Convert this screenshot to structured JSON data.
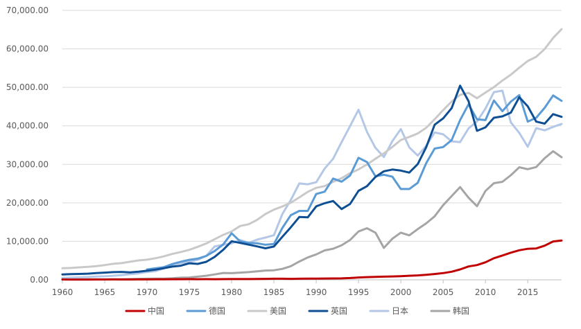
{
  "chart_data": {
    "type": "line",
    "title": "",
    "xlabel": "",
    "ylabel": "",
    "x": [
      1960,
      1961,
      1962,
      1963,
      1964,
      1965,
      1966,
      1967,
      1968,
      1969,
      1970,
      1971,
      1972,
      1973,
      1974,
      1975,
      1976,
      1977,
      1978,
      1979,
      1980,
      1981,
      1982,
      1983,
      1984,
      1985,
      1986,
      1987,
      1988,
      1989,
      1990,
      1991,
      1992,
      1993,
      1994,
      1995,
      1996,
      1997,
      1998,
      1999,
      2000,
      2001,
      2002,
      2003,
      2004,
      2005,
      2006,
      2007,
      2008,
      2009,
      2010,
      2011,
      2012,
      2013,
      2014,
      2015,
      2016,
      2017,
      2018,
      2019
    ],
    "xlim": [
      1960,
      2019
    ],
    "x_ticks": [
      "1960",
      "1965",
      "1970",
      "1975",
      "1980",
      "1985",
      "1990",
      "1995",
      "2000",
      "2005",
      "2010",
      "2015"
    ],
    "x_tick_values": [
      1960,
      1965,
      1970,
      1975,
      1980,
      1985,
      1990,
      1995,
      2000,
      2005,
      2010,
      2015
    ],
    "ylim": [
      0,
      70000
    ],
    "y_ticks": [
      "0.00",
      "10,000.00",
      "20,000.00",
      "30,000.00",
      "40,000.00",
      "50,000.00",
      "60,000.00",
      "70,000.00"
    ],
    "y_tick_values": [
      0,
      10000,
      20000,
      30000,
      40000,
      50000,
      60000,
      70000
    ],
    "grid": "horizontal",
    "legend_position": "bottom",
    "series": [
      {
        "name": "中国",
        "color": "#c00000",
        "values": [
          90,
          76,
          70,
          74,
          85,
          98,
          104,
          97,
          91,
          100,
          113,
          118,
          131,
          156,
          160,
          178,
          165,
          185,
          156,
          183,
          195,
          197,
          203,
          225,
          250,
          294,
          281,
          252,
          284,
          311,
          318,
          333,
          366,
          377,
          473,
          610,
          709,
          782,
          829,
          873,
          959,
          1053,
          1149,
          1289,
          1509,
          1753,
          2099,
          2694,
          3468,
          3832,
          4550,
          5618,
          6317,
          7051,
          7679,
          8066,
          8148,
          8879,
          9977,
          10217
        ]
      },
      {
        "name": "德国",
        "color": "#5b9bd5",
        "values": [
          null,
          null,
          null,
          null,
          null,
          null,
          null,
          null,
          null,
          null,
          2700,
          3000,
          3300,
          4100,
          4700,
          5200,
          5500,
          6200,
          7500,
          9200,
          12100,
          10000,
          9600,
          9500,
          9100,
          9300,
          13500,
          16800,
          17900,
          17900,
          22300,
          22900,
          26300,
          25500,
          27100,
          31700,
          30600,
          26900,
          27300,
          26800,
          23600,
          23600,
          25200,
          30300,
          34100,
          34500,
          36300,
          41500,
          45600,
          41700,
          41500,
          46600,
          43800,
          46300,
          48000,
          41100,
          42100,
          44700,
          47900,
          46500
        ]
      },
      {
        "name": "美国",
        "color": "#c9c9c9",
        "values": [
          3000,
          3070,
          3240,
          3370,
          3570,
          3830,
          4150,
          4330,
          4690,
          5030,
          5230,
          5610,
          6100,
          6730,
          7240,
          7800,
          8590,
          9450,
          10560,
          11670,
          12570,
          13990,
          14430,
          15560,
          17120,
          18230,
          19070,
          20040,
          21420,
          22860,
          23890,
          24340,
          25470,
          26390,
          27690,
          28690,
          29970,
          31460,
          32850,
          34510,
          36330,
          37130,
          38020,
          39490,
          41720,
          44110,
          46300,
          48050,
          48570,
          47190,
          48650,
          50070,
          51780,
          53290,
          55120,
          56850,
          57950,
          59960,
          62840,
          65120
        ]
      },
      {
        "name": "英国",
        "color": "#0e4f94",
        "values": [
          1400,
          1470,
          1530,
          1600,
          1750,
          1870,
          1990,
          2060,
          1950,
          2100,
          2350,
          2650,
          3030,
          3430,
          3670,
          4300,
          4140,
          4680,
          5980,
          7800,
          10030,
          9600,
          9150,
          8690,
          8180,
          8650,
          11200,
          13650,
          16330,
          16240,
          19100,
          19900,
          20470,
          18390,
          19710,
          23120,
          24330,
          26730,
          28200,
          28640,
          28370,
          27850,
          30070,
          34440,
          40290,
          41950,
          44600,
          50440,
          46430,
          38710,
          39600,
          42100,
          42460,
          43440,
          47440,
          45070,
          41100,
          40570,
          43050,
          42350
        ]
      },
      {
        "name": "日本",
        "color": "#b4c7e7",
        "values": [
          480,
          560,
          630,
          720,
          840,
          920,
          1060,
          1230,
          1450,
          1670,
          2040,
          2270,
          2950,
          3980,
          4350,
          4660,
          5200,
          6230,
          8670,
          9100,
          9460,
          10360,
          9580,
          10430,
          10980,
          11580,
          17110,
          20750,
          25050,
          24810,
          25360,
          28920,
          31460,
          35770,
          39930,
          44200,
          38440,
          34300,
          31900,
          36030,
          39170,
          34410,
          32290,
          34810,
          38300,
          37810,
          35990,
          35780,
          39340,
          41130,
          44510,
          48760,
          49140,
          40900,
          38160,
          34570,
          39410,
          38830,
          39730,
          40500
        ]
      },
      {
        "name": "韩国",
        "color": "#a5a5a5",
        "values": [
          160,
          95,
          110,
          145,
          125,
          110,
          135,
          160,
          200,
          250,
          280,
          300,
          330,
          410,
          560,
          620,
          830,
          1060,
          1400,
          1780,
          1720,
          1880,
          1990,
          2200,
          2420,
          2480,
          2840,
          3540,
          4750,
          5820,
          6600,
          7640,
          8080,
          8980,
          10350,
          12560,
          13400,
          12260,
          8300,
          10670,
          12260,
          11560,
          13170,
          14670,
          16500,
          19400,
          21750,
          24090,
          21340,
          19120,
          23090,
          25100,
          25470,
          27180,
          29250,
          28730,
          29290,
          31600,
          33420,
          31850
        ]
      }
    ]
  }
}
